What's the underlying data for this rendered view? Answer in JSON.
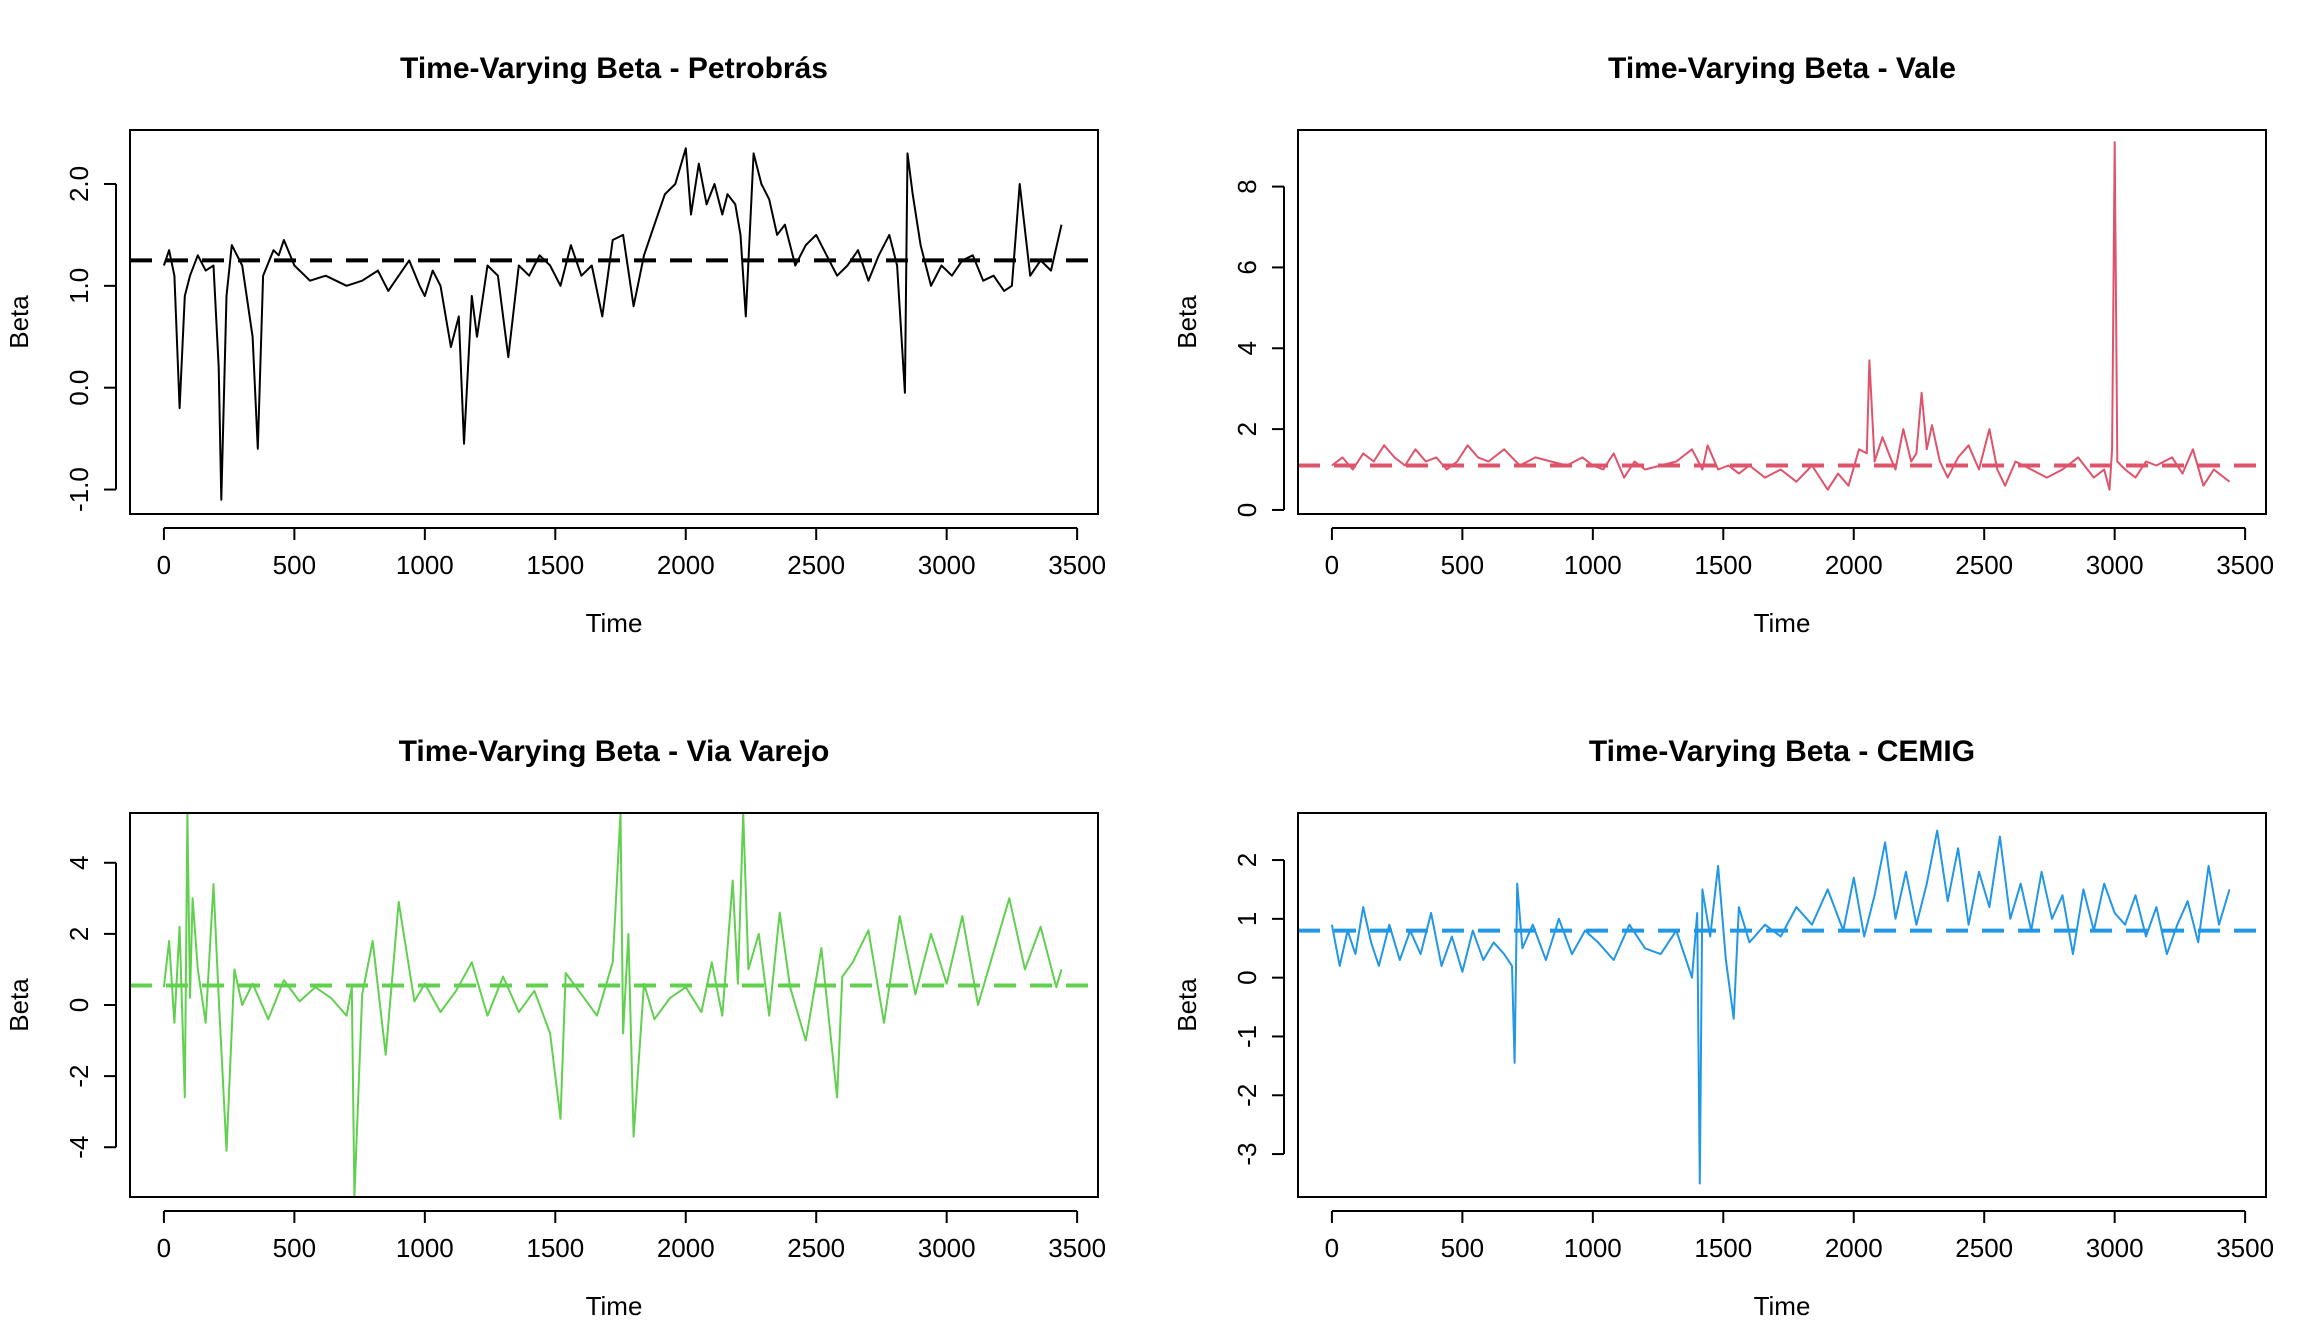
{
  "figure": {
    "background": "#ffffff"
  },
  "chart_data": [
    {
      "type": "line",
      "title": "Time-Varying Beta - Petrobrás",
      "xlabel": "Time",
      "ylabel": "Beta",
      "xlim": [
        -130,
        3580
      ],
      "ylim": [
        -1.24,
        2.53
      ],
      "x_ticks": [
        0,
        500,
        1000,
        1500,
        2000,
        2500,
        3000,
        3500
      ],
      "x_tick_labels": [
        "0",
        "500",
        "1000",
        "1500",
        "2000",
        "2500",
        "3000",
        "3500"
      ],
      "y_ticks": [
        -1.0,
        0.0,
        1.0,
        2.0
      ],
      "y_tick_labels": [
        "-1.0",
        "0.0",
        "1.0",
        "2.0"
      ],
      "grid": false,
      "color": "#000000",
      "mean_line": 1.25,
      "series": [
        {
          "x": [
            0,
            20,
            40,
            60,
            80,
            100,
            130,
            160,
            190,
            210,
            220,
            240,
            260,
            300,
            340,
            360,
            380,
            420,
            440,
            460,
            500,
            560,
            620,
            700,
            760,
            820,
            860,
            900,
            940,
            980,
            1000,
            1030,
            1060,
            1100,
            1130,
            1150,
            1180,
            1200,
            1240,
            1280,
            1320,
            1360,
            1400,
            1440,
            1480,
            1520,
            1560,
            1600,
            1640,
            1680,
            1720,
            1760,
            1800,
            1840,
            1880,
            1920,
            1960,
            2000,
            2020,
            2050,
            2080,
            2110,
            2140,
            2160,
            2190,
            2210,
            2230,
            2260,
            2290,
            2320,
            2350,
            2380,
            2420,
            2460,
            2500,
            2540,
            2580,
            2620,
            2660,
            2700,
            2740,
            2780,
            2810,
            2840,
            2850,
            2870,
            2900,
            2940,
            2980,
            3020,
            3060,
            3100,
            3140,
            3180,
            3220,
            3250,
            3280,
            3320,
            3360,
            3400,
            3440
          ],
          "y": [
            1.2,
            1.35,
            1.1,
            -0.2,
            0.9,
            1.1,
            1.3,
            1.15,
            1.2,
            0.2,
            -1.1,
            0.9,
            1.4,
            1.2,
            0.5,
            -0.6,
            1.1,
            1.35,
            1.3,
            1.45,
            1.2,
            1.05,
            1.1,
            1.0,
            1.05,
            1.15,
            0.95,
            1.1,
            1.25,
            1.0,
            0.9,
            1.15,
            1.0,
            0.4,
            0.7,
            -0.55,
            0.9,
            0.5,
            1.2,
            1.1,
            0.3,
            1.2,
            1.1,
            1.3,
            1.2,
            1.0,
            1.4,
            1.1,
            1.2,
            0.7,
            1.45,
            1.5,
            0.8,
            1.3,
            1.6,
            1.9,
            2.0,
            2.35,
            1.7,
            2.2,
            1.8,
            2.0,
            1.7,
            1.9,
            1.8,
            1.5,
            0.7,
            2.3,
            2.0,
            1.85,
            1.5,
            1.6,
            1.2,
            1.4,
            1.5,
            1.3,
            1.1,
            1.2,
            1.35,
            1.05,
            1.3,
            1.5,
            1.2,
            -0.05,
            2.3,
            1.9,
            1.4,
            1.0,
            1.2,
            1.1,
            1.25,
            1.3,
            1.05,
            1.1,
            0.95,
            1.0,
            2.0,
            1.1,
            1.25,
            1.15,
            1.6
          ]
        }
      ]
    },
    {
      "type": "line",
      "title": "Time-Varying Beta - Vale",
      "xlabel": "Time",
      "ylabel": "Beta",
      "xlim": [
        -130,
        3580
      ],
      "ylim": [
        -0.1,
        9.4
      ],
      "x_ticks": [
        0,
        500,
        1000,
        1500,
        2000,
        2500,
        3000,
        3500
      ],
      "x_tick_labels": [
        "0",
        "500",
        "1000",
        "1500",
        "2000",
        "2500",
        "3000",
        "3500"
      ],
      "y_ticks": [
        0,
        2,
        4,
        6,
        8
      ],
      "y_tick_labels": [
        "0",
        "2",
        "4",
        "6",
        "8"
      ],
      "grid": false,
      "color": "#DF536B",
      "mean_line": 1.1,
      "series": [
        {
          "x": [
            0,
            40,
            80,
            120,
            160,
            200,
            240,
            280,
            320,
            360,
            400,
            440,
            480,
            520,
            560,
            600,
            660,
            720,
            780,
            840,
            900,
            960,
            1000,
            1040,
            1080,
            1120,
            1160,
            1200,
            1260,
            1320,
            1380,
            1420,
            1440,
            1480,
            1520,
            1560,
            1600,
            1660,
            1720,
            1780,
            1840,
            1900,
            1940,
            1980,
            2020,
            2050,
            2060,
            2080,
            2110,
            2140,
            2160,
            2190,
            2220,
            2240,
            2260,
            2280,
            2300,
            2330,
            2360,
            2400,
            2440,
            2480,
            2520,
            2550,
            2580,
            2620,
            2680,
            2740,
            2800,
            2860,
            2920,
            2960,
            2980,
            2990,
            3000,
            3010,
            3040,
            3080,
            3120,
            3160,
            3220,
            3260,
            3300,
            3340,
            3380,
            3440
          ],
          "y": [
            1.1,
            1.3,
            1.0,
            1.4,
            1.2,
            1.6,
            1.3,
            1.1,
            1.5,
            1.2,
            1.3,
            1.0,
            1.2,
            1.6,
            1.3,
            1.2,
            1.5,
            1.1,
            1.3,
            1.2,
            1.1,
            1.3,
            1.1,
            1.0,
            1.4,
            0.8,
            1.2,
            1.0,
            1.1,
            1.2,
            1.5,
            1.0,
            1.6,
            1.0,
            1.1,
            0.9,
            1.1,
            0.8,
            1.0,
            0.7,
            1.1,
            0.5,
            0.9,
            0.6,
            1.5,
            1.4,
            3.7,
            1.2,
            1.8,
            1.3,
            1.0,
            2.0,
            1.2,
            1.4,
            2.9,
            1.5,
            2.1,
            1.2,
            0.8,
            1.3,
            1.6,
            1.0,
            2.0,
            1.0,
            0.6,
            1.2,
            1.0,
            0.8,
            1.0,
            1.3,
            0.8,
            1.0,
            0.5,
            1.5,
            9.1,
            1.2,
            1.0,
            0.8,
            1.2,
            1.1,
            1.3,
            0.9,
            1.5,
            0.6,
            1.0,
            0.7
          ]
        }
      ]
    },
    {
      "type": "line",
      "title": "Time-Varying Beta - Via Varejo",
      "xlabel": "Time",
      "ylabel": "Beta",
      "xlim": [
        -130,
        3580
      ],
      "ylim": [
        -5.4,
        5.4
      ],
      "x_ticks": [
        0,
        500,
        1000,
        1500,
        2000,
        2500,
        3000,
        3500
      ],
      "x_tick_labels": [
        "0",
        "500",
        "1000",
        "1500",
        "2000",
        "2500",
        "3000",
        "3500"
      ],
      "y_ticks": [
        -4,
        -2,
        0,
        2,
        4
      ],
      "y_tick_labels": [
        "-4",
        "-2",
        "0",
        "2",
        "4"
      ],
      "grid": false,
      "color": "#61D04F",
      "mean_line": 0.55,
      "series": [
        {
          "x": [
            0,
            20,
            40,
            60,
            80,
            90,
            100,
            110,
            130,
            160,
            190,
            210,
            240,
            270,
            300,
            340,
            400,
            460,
            520,
            580,
            640,
            700,
            720,
            730,
            760,
            800,
            850,
            900,
            960,
            1000,
            1060,
            1120,
            1180,
            1240,
            1300,
            1360,
            1420,
            1480,
            1520,
            1540,
            1600,
            1660,
            1720,
            1750,
            1760,
            1780,
            1800,
            1840,
            1880,
            1940,
            2000,
            2060,
            2100,
            2140,
            2180,
            2200,
            2220,
            2240,
            2280,
            2320,
            2360,
            2400,
            2460,
            2520,
            2580,
            2600,
            2640,
            2700,
            2760,
            2820,
            2880,
            2940,
            3000,
            3060,
            3120,
            3180,
            3240,
            3300,
            3360,
            3420,
            3440
          ],
          "y": [
            0.5,
            1.8,
            -0.5,
            2.2,
            -2.6,
            5.4,
            0.2,
            3.0,
            1.0,
            -0.5,
            3.4,
            0.2,
            -4.1,
            1.0,
            0.0,
            0.6,
            -0.4,
            0.7,
            0.1,
            0.5,
            0.2,
            -0.3,
            0.5,
            -5.4,
            0.3,
            1.8,
            -1.4,
            2.9,
            0.1,
            0.6,
            -0.2,
            0.4,
            1.2,
            -0.3,
            0.8,
            -0.2,
            0.4,
            -0.8,
            -3.2,
            0.9,
            0.3,
            -0.3,
            1.2,
            5.4,
            -0.8,
            2.0,
            -3.7,
            0.6,
            -0.4,
            0.2,
            0.5,
            -0.2,
            1.2,
            -0.3,
            3.5,
            0.6,
            5.4,
            1.0,
            2.0,
            -0.3,
            2.6,
            0.5,
            -1.0,
            1.6,
            -2.6,
            0.8,
            1.2,
            2.1,
            -0.5,
            2.5,
            0.3,
            2.0,
            0.6,
            2.5,
            0.0,
            1.5,
            3.0,
            1.0,
            2.2,
            0.5,
            1.0
          ]
        }
      ]
    },
    {
      "type": "line",
      "title": "Time-Varying Beta - CEMIG",
      "xlabel": "Time",
      "ylabel": "Beta",
      "xlim": [
        -130,
        3580
      ],
      "ylim": [
        -3.73,
        2.8
      ],
      "x_ticks": [
        0,
        500,
        1000,
        1500,
        2000,
        2500,
        3000,
        3500
      ],
      "x_tick_labels": [
        "0",
        "500",
        "1000",
        "1500",
        "2000",
        "2500",
        "3000",
        "3500"
      ],
      "y_ticks": [
        -3,
        -2,
        -1,
        0,
        1,
        2
      ],
      "y_tick_labels": [
        "-3",
        "-2",
        "-1",
        "0",
        "1",
        "2"
      ],
      "grid": false,
      "color": "#2297E6",
      "mean_line": 0.8,
      "series": [
        {
          "x": [
            0,
            30,
            60,
            90,
            120,
            150,
            180,
            220,
            260,
            300,
            340,
            380,
            420,
            460,
            500,
            540,
            580,
            620,
            660,
            690,
            700,
            710,
            730,
            770,
            820,
            870,
            920,
            970,
            1020,
            1080,
            1140,
            1200,
            1260,
            1320,
            1380,
            1400,
            1410,
            1420,
            1450,
            1480,
            1510,
            1540,
            1560,
            1600,
            1660,
            1720,
            1780,
            1840,
            1900,
            1960,
            2000,
            2040,
            2080,
            2120,
            2160,
            2200,
            2240,
            2280,
            2320,
            2360,
            2400,
            2440,
            2480,
            2520,
            2560,
            2600,
            2640,
            2680,
            2720,
            2760,
            2800,
            2840,
            2880,
            2920,
            2960,
            3000,
            3040,
            3080,
            3120,
            3160,
            3200,
            3240,
            3280,
            3320,
            3360,
            3400,
            3440
          ],
          "y": [
            0.9,
            0.2,
            0.8,
            0.4,
            1.2,
            0.6,
            0.2,
            0.9,
            0.3,
            0.8,
            0.4,
            1.1,
            0.2,
            0.7,
            0.1,
            0.8,
            0.3,
            0.6,
            0.4,
            0.2,
            -1.45,
            1.6,
            0.5,
            0.9,
            0.3,
            1.0,
            0.4,
            0.8,
            0.6,
            0.3,
            0.9,
            0.5,
            0.4,
            0.8,
            0.0,
            1.1,
            -3.5,
            1.5,
            0.7,
            1.9,
            0.3,
            -0.7,
            1.2,
            0.6,
            0.9,
            0.7,
            1.2,
            0.9,
            1.5,
            0.8,
            1.7,
            0.7,
            1.4,
            2.3,
            1.0,
            1.8,
            0.9,
            1.6,
            2.5,
            1.3,
            2.2,
            0.9,
            1.8,
            1.2,
            2.4,
            1.0,
            1.6,
            0.8,
            1.8,
            1.0,
            1.4,
            0.4,
            1.5,
            0.8,
            1.6,
            1.1,
            0.9,
            1.4,
            0.7,
            1.2,
            0.4,
            0.9,
            1.3,
            0.6,
            1.9,
            0.9,
            1.5
          ]
        }
      ]
    }
  ]
}
